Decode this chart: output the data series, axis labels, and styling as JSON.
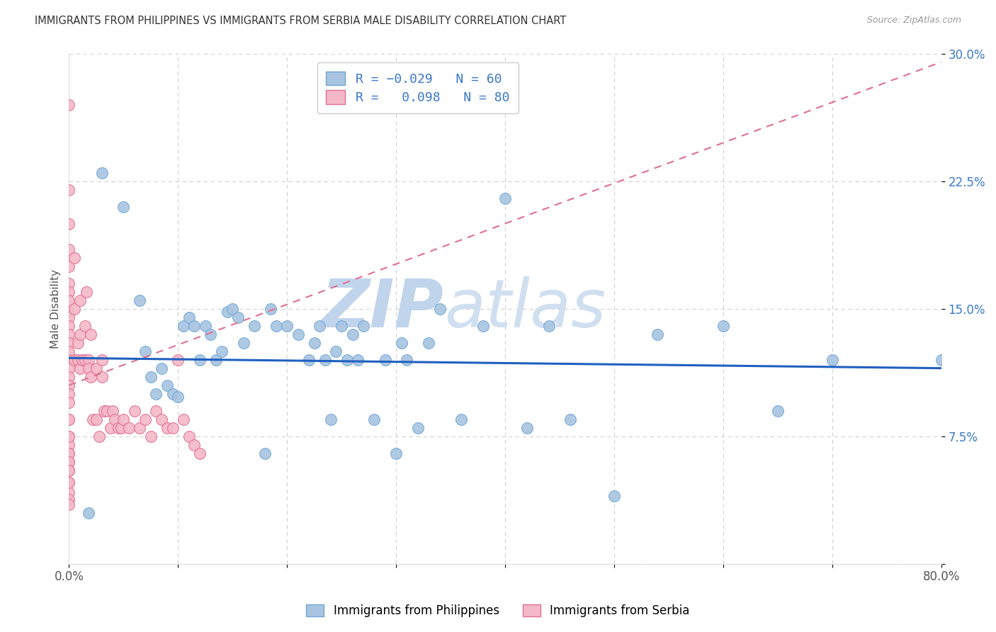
{
  "title": "IMMIGRANTS FROM PHILIPPINES VS IMMIGRANTS FROM SERBIA MALE DISABILITY CORRELATION CHART",
  "source": "Source: ZipAtlas.com",
  "ylabel": "Male Disability",
  "x_min": 0.0,
  "x_max": 0.8,
  "y_min": 0.0,
  "y_max": 0.3,
  "y_ticks": [
    0.0,
    0.075,
    0.15,
    0.225,
    0.3
  ],
  "y_tick_labels": [
    "",
    "7.5%",
    "15.0%",
    "22.5%",
    "30.0%"
  ],
  "philippines_color": "#a8c4e0",
  "philippines_edge": "#6fa8d6",
  "serbia_color": "#f4b8c8",
  "serbia_edge": "#e07090",
  "philippines_R": -0.029,
  "philippines_N": 60,
  "serbia_R": 0.098,
  "serbia_N": 80,
  "trend_philippines_color": "#2060c0",
  "trend_serbia_solid_color": "#d04060",
  "trend_serbia_dash_color": "#e07090",
  "watermark_zip": "ZIP",
  "watermark_atlas": "atlas",
  "watermark_color": "#d0dff0",
  "philippines_x": [
    0.018,
    0.03,
    0.05,
    0.065,
    0.07,
    0.075,
    0.08,
    0.085,
    0.09,
    0.095,
    0.1,
    0.105,
    0.11,
    0.115,
    0.12,
    0.125,
    0.13,
    0.135,
    0.14,
    0.145,
    0.15,
    0.155,
    0.16,
    0.17,
    0.18,
    0.185,
    0.19,
    0.2,
    0.21,
    0.22,
    0.225,
    0.23,
    0.235,
    0.24,
    0.245,
    0.25,
    0.255,
    0.26,
    0.265,
    0.27,
    0.28,
    0.29,
    0.3,
    0.305,
    0.31,
    0.32,
    0.33,
    0.34,
    0.36,
    0.38,
    0.4,
    0.42,
    0.44,
    0.46,
    0.5,
    0.54,
    0.6,
    0.65,
    0.7,
    0.8
  ],
  "philippines_y": [
    0.03,
    0.23,
    0.21,
    0.155,
    0.125,
    0.11,
    0.1,
    0.115,
    0.105,
    0.1,
    0.098,
    0.14,
    0.145,
    0.14,
    0.12,
    0.14,
    0.135,
    0.12,
    0.125,
    0.148,
    0.15,
    0.145,
    0.13,
    0.14,
    0.065,
    0.15,
    0.14,
    0.14,
    0.135,
    0.12,
    0.13,
    0.14,
    0.12,
    0.085,
    0.125,
    0.14,
    0.12,
    0.135,
    0.12,
    0.14,
    0.085,
    0.12,
    0.065,
    0.13,
    0.12,
    0.08,
    0.13,
    0.15,
    0.085,
    0.14,
    0.215,
    0.08,
    0.14,
    0.085,
    0.04,
    0.135,
    0.14,
    0.09,
    0.12,
    0.12
  ],
  "serbia_x": [
    0.0,
    0.0,
    0.0,
    0.0,
    0.0,
    0.0,
    0.0,
    0.0,
    0.0,
    0.0,
    0.0,
    0.0,
    0.0,
    0.0,
    0.0,
    0.0,
    0.0,
    0.0,
    0.0,
    0.0,
    0.005,
    0.005,
    0.005,
    0.008,
    0.008,
    0.01,
    0.01,
    0.01,
    0.012,
    0.015,
    0.015,
    0.016,
    0.018,
    0.018,
    0.02,
    0.02,
    0.022,
    0.025,
    0.025,
    0.028,
    0.03,
    0.03,
    0.032,
    0.035,
    0.038,
    0.04,
    0.042,
    0.045,
    0.048,
    0.05,
    0.055,
    0.06,
    0.065,
    0.07,
    0.075,
    0.08,
    0.085,
    0.09,
    0.095,
    0.1,
    0.105,
    0.11,
    0.115,
    0.12,
    0.0,
    0.0,
    0.0,
    0.0,
    0.0,
    0.0,
    0.0,
    0.0,
    0.0,
    0.0,
    0.0,
    0.0,
    0.0,
    0.0,
    0.0,
    0.0
  ],
  "serbia_y": [
    0.27,
    0.22,
    0.2,
    0.185,
    0.175,
    0.165,
    0.16,
    0.155,
    0.148,
    0.145,
    0.14,
    0.135,
    0.13,
    0.125,
    0.12,
    0.115,
    0.11,
    0.105,
    0.1,
    0.095,
    0.18,
    0.15,
    0.12,
    0.13,
    0.12,
    0.155,
    0.135,
    0.115,
    0.12,
    0.14,
    0.12,
    0.16,
    0.12,
    0.115,
    0.135,
    0.11,
    0.085,
    0.115,
    0.085,
    0.075,
    0.12,
    0.11,
    0.09,
    0.09,
    0.08,
    0.09,
    0.085,
    0.08,
    0.08,
    0.085,
    0.08,
    0.09,
    0.08,
    0.085,
    0.075,
    0.09,
    0.085,
    0.08,
    0.08,
    0.12,
    0.085,
    0.075,
    0.07,
    0.065,
    0.085,
    0.075,
    0.07,
    0.065,
    0.06,
    0.055,
    0.048,
    0.042,
    0.038,
    0.035,
    0.085,
    0.075,
    0.065,
    0.06,
    0.055,
    0.048
  ],
  "phil_trend_x0": 0.0,
  "phil_trend_y0": 0.121,
  "phil_trend_x1": 0.8,
  "phil_trend_y1": 0.115,
  "serb_trend_x0": 0.0,
  "serb_trend_y0": 0.105,
  "serb_trend_x1": 0.8,
  "serb_trend_y1": 0.295
}
